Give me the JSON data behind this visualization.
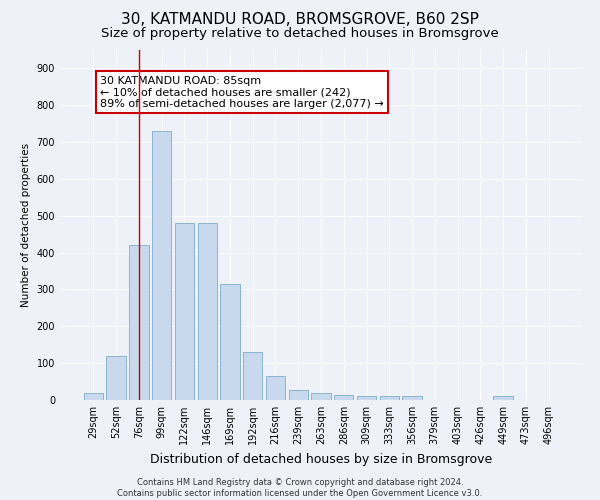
{
  "title1": "30, KATMANDU ROAD, BROMSGROVE, B60 2SP",
  "title2": "Size of property relative to detached houses in Bromsgrove",
  "xlabel": "Distribution of detached houses by size in Bromsgrove",
  "ylabel": "Number of detached properties",
  "categories": [
    "29sqm",
    "52sqm",
    "76sqm",
    "99sqm",
    "122sqm",
    "146sqm",
    "169sqm",
    "192sqm",
    "216sqm",
    "239sqm",
    "263sqm",
    "286sqm",
    "309sqm",
    "333sqm",
    "356sqm",
    "379sqm",
    "403sqm",
    "426sqm",
    "449sqm",
    "473sqm",
    "496sqm"
  ],
  "values": [
    20,
    120,
    420,
    730,
    480,
    480,
    315,
    130,
    65,
    28,
    20,
    14,
    10,
    10,
    10,
    0,
    0,
    0,
    10,
    0,
    0
  ],
  "bar_color": "#c9d9ed",
  "bar_edge_color": "#8ab4d4",
  "vline_x": 2,
  "vline_color": "#cc0000",
  "annotation_text": "30 KATMANDU ROAD: 85sqm\n← 10% of detached houses are smaller (242)\n89% of semi-detached houses are larger (2,077) →",
  "annotation_box_color": "#ffffff",
  "annotation_box_edge": "#cc0000",
  "ylim": [
    0,
    950
  ],
  "yticks": [
    0,
    100,
    200,
    300,
    400,
    500,
    600,
    700,
    800,
    900
  ],
  "footer": "Contains HM Land Registry data © Crown copyright and database right 2024.\nContains public sector information licensed under the Open Government Licence v3.0.",
  "bg_color": "#eef2f8",
  "grid_color": "#ffffff",
  "title1_fontsize": 11,
  "title2_fontsize": 9.5,
  "annot_fontsize": 8,
  "axis_fontsize": 7.5,
  "tick_fontsize": 7,
  "ylabel_fontsize": 7.5,
  "xlabel_fontsize": 9,
  "footer_fontsize": 6
}
